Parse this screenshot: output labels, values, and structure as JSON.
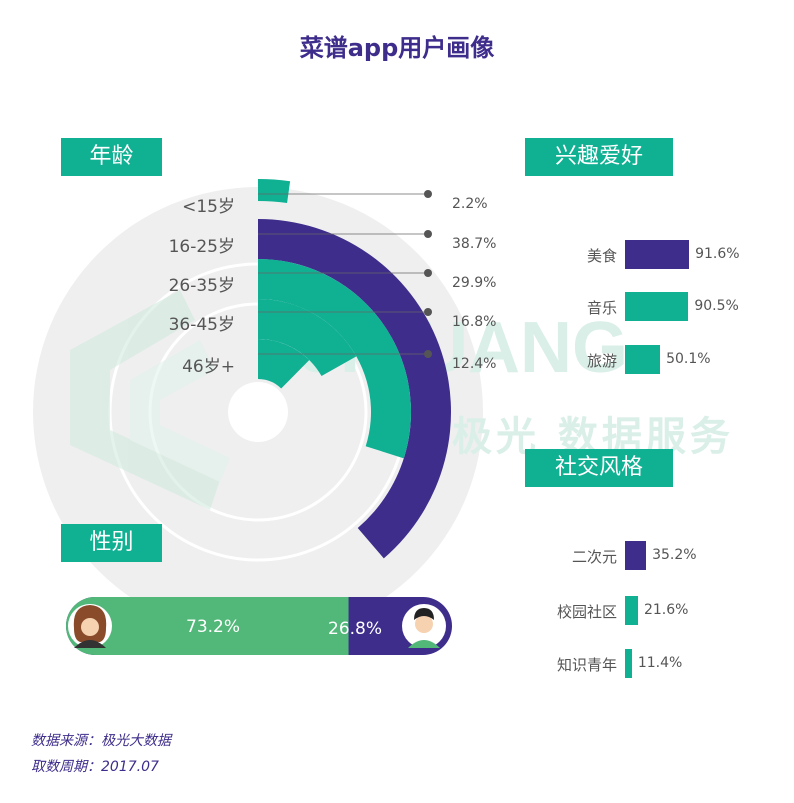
{
  "title": "菜谱app用户画像",
  "tags": {
    "age": "年龄",
    "interest": "兴趣爱好",
    "social": "社交风格",
    "gender": "性别"
  },
  "watermark": {
    "brand": "JIGUANG",
    "text": "极光 数据服务"
  },
  "colors": {
    "purple": "#3f2d8c",
    "teal": "#10b093",
    "green": "#52b879",
    "grey_bg": "#efefef"
  },
  "chart_data": [
    {
      "type": "radial_bar",
      "name": "age",
      "categories": [
        "<15岁",
        "16-25岁",
        "26-35岁",
        "36-45岁",
        "46岁+"
      ],
      "values": [
        2.2,
        38.7,
        29.9,
        16.8,
        12.4
      ],
      "value_labels": [
        "2.2%",
        "38.7%",
        "29.9%",
        "16.8%",
        "12.4%"
      ],
      "unit": "%"
    },
    {
      "type": "bar",
      "name": "interest",
      "orientation": "horizontal",
      "categories": [
        "美食",
        "音乐",
        "旅游"
      ],
      "values": [
        91.6,
        90.5,
        50.1
      ],
      "value_labels": [
        "91.6%",
        "90.5%",
        "50.1%"
      ]
    },
    {
      "type": "bar",
      "name": "social",
      "orientation": "horizontal",
      "categories": [
        "二次元",
        "校园社区",
        "知识青年"
      ],
      "values": [
        35.2,
        21.6,
        11.4
      ],
      "value_labels": [
        "35.2%",
        "21.6%",
        "11.4%"
      ]
    },
    {
      "type": "bar",
      "name": "gender",
      "orientation": "stacked",
      "categories": [
        "女",
        "男"
      ],
      "values": [
        73.2,
        26.8
      ],
      "value_labels": [
        "73.2%",
        "26.8%"
      ]
    }
  ],
  "source": {
    "line1": "数据来源：极光大数据",
    "line2": "取数周期：2017.07"
  }
}
